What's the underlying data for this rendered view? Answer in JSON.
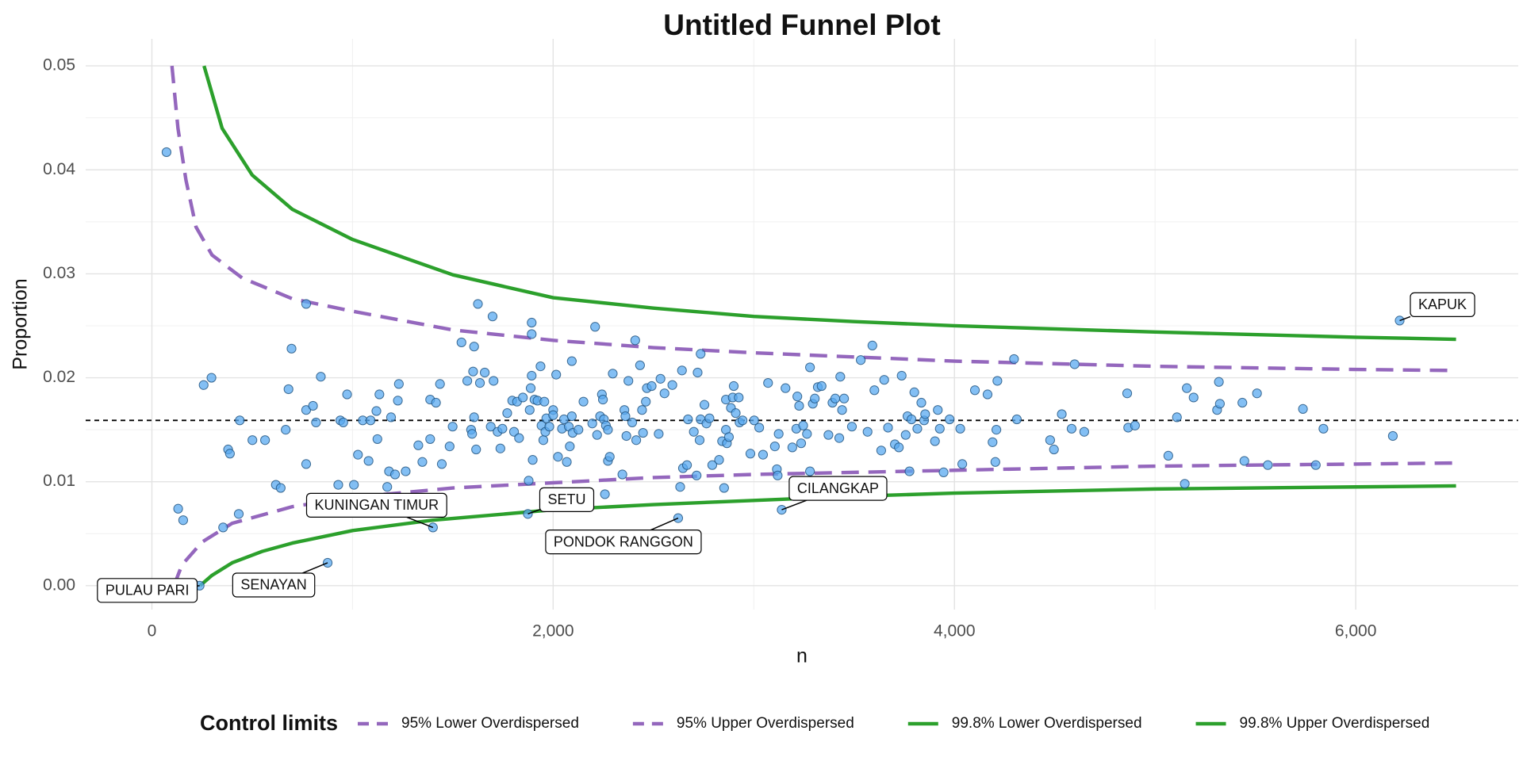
{
  "chart_data": {
    "type": "scatter",
    "title": "Untitled Funnel Plot",
    "x_label": "n",
    "y_label": "Proportion",
    "legend_title": "Control limits",
    "legend": "bottom",
    "grid": true,
    "point_color": "#5aaaf0",
    "reference_line": 0.0159,
    "xlim": [
      -330,
      6810
    ],
    "ylim": [
      -0.0023,
      0.0526
    ],
    "xticks": [
      0,
      {
        "value": 2000,
        "label": "2,000"
      },
      {
        "value": 4000,
        "label": "4,000"
      },
      {
        "value": 6000,
        "label": "6,000"
      }
    ],
    "yticks": [
      {
        "value": 0,
        "label": "0.00"
      },
      0.01,
      0.02,
      0.03,
      0.04,
      0.05
    ],
    "x": [
      73,
      131,
      156,
      258,
      297,
      355,
      380,
      389,
      433,
      438,
      501,
      564,
      618,
      642,
      667,
      681,
      696,
      769,
      769,
      769,
      803,
      818,
      842,
      876,
      929,
      939,
      954,
      973,
      1007,
      1027,
      1051,
      1080,
      1090,
      1119,
      1124,
      1134,
      1173,
      1182,
      1192,
      1212,
      1226,
      1231,
      1265,
      1328,
      1348,
      1387,
      1387,
      1401,
      1416,
      1436,
      1445,
      1484,
      1499,
      1543,
      1572,
      1591,
      1596,
      1601,
      1606,
      1606,
      1616,
      1625,
      1635,
      1659,
      1689,
      1698,
      1703,
      1723,
      1737,
      1747,
      1771,
      1796,
      1805,
      1820,
      1830,
      1849,
      1874,
      1878,
      1883,
      1888,
      1893,
      1893,
      1893,
      1898,
      1907,
      1922,
      1937,
      1942,
      1951,
      1956,
      1961,
      1966,
      1981,
      2000,
      2000,
      2015,
      2024,
      2044,
      2054,
      2068,
      2078,
      2083,
      2093,
      2093,
      2097,
      2126,
      2151,
      2195,
      2209,
      2219,
      2234,
      2243,
      2248,
      2253,
      2258,
      2263,
      2273,
      2273,
      2282,
      2297,
      2345,
      2355,
      2360,
      2365,
      2375,
      2394,
      2409,
      2414,
      2433,
      2443,
      2448,
      2462,
      2467,
      2491,
      2526,
      2535,
      2555,
      2594,
      2623,
      2633,
      2642,
      2647,
      2667,
      2672,
      2701,
      2715,
      2720,
      2730,
      2735,
      2735,
      2754,
      2764,
      2779,
      2793,
      2827,
      2842,
      2852,
      2861,
      2861,
      2866,
      2876,
      2886,
      2895,
      2900,
      2910,
      2925,
      2929,
      2944,
      2983,
      3002,
      3027,
      3046,
      3071,
      3105,
      3115,
      3119,
      3124,
      3139,
      3158,
      3192,
      3212,
      3217,
      3226,
      3236,
      3246,
      3265,
      3280,
      3280,
      3294,
      3304,
      3319,
      3338,
      3372,
      3392,
      3406,
      3426,
      3431,
      3440,
      3450,
      3489,
      3533,
      3567,
      3591,
      3601,
      3635,
      3650,
      3669,
      3703,
      3723,
      3737,
      3757,
      3766,
      3776,
      3786,
      3800,
      3815,
      3835,
      3849,
      3854,
      3903,
      3917,
      3927,
      3946,
      3976,
      4029,
      4039,
      4102,
      4165,
      4190,
      4204,
      4209,
      4214,
      4297,
      4311,
      4477,
      4496,
      4535,
      4584,
      4599,
      4647,
      4861,
      4866,
      4900,
      5066,
      5109,
      5148,
      5158,
      5192,
      5309,
      5318,
      5323,
      5435,
      5445,
      5508,
      5562,
      5737,
      5801,
      5839,
      6185,
      6219,
      238
    ],
    "values": [
      0.0417,
      0.0074,
      0.0063,
      0.0193,
      0.02,
      0.0056,
      0.0131,
      0.0127,
      0.0069,
      0.0159,
      0.014,
      0.014,
      0.0097,
      0.0094,
      0.015,
      0.0189,
      0.0228,
      0.0271,
      0.0117,
      0.0169,
      0.0173,
      0.0157,
      0.0201,
      0.0022,
      0.0097,
      0.0159,
      0.0157,
      0.0184,
      0.0097,
      0.0126,
      0.0159,
      0.012,
      0.0159,
      0.0168,
      0.0141,
      0.0184,
      0.0095,
      0.011,
      0.0162,
      0.0107,
      0.0178,
      0.0194,
      0.011,
      0.0135,
      0.0119,
      0.0141,
      0.0179,
      0.0056,
      0.0176,
      0.0194,
      0.0117,
      0.0134,
      0.0153,
      0.0234,
      0.0197,
      0.015,
      0.0146,
      0.0206,
      0.0162,
      0.023,
      0.0131,
      0.0271,
      0.0195,
      0.0205,
      0.0153,
      0.0259,
      0.0197,
      0.0148,
      0.0132,
      0.0151,
      0.0166,
      0.0178,
      0.0148,
      0.0177,
      0.0142,
      0.0181,
      0.0069,
      0.0101,
      0.0169,
      0.019,
      0.0253,
      0.0242,
      0.0202,
      0.0121,
      0.0179,
      0.0178,
      0.0211,
      0.0154,
      0.014,
      0.0177,
      0.0148,
      0.0161,
      0.0153,
      0.0169,
      0.0164,
      0.0203,
      0.0124,
      0.0151,
      0.016,
      0.0119,
      0.0153,
      0.0134,
      0.0163,
      0.0216,
      0.0147,
      0.015,
      0.0177,
      0.0156,
      0.0249,
      0.0145,
      0.0163,
      0.0184,
      0.0179,
      0.016,
      0.0088,
      0.0154,
      0.015,
      0.012,
      0.0124,
      0.0204,
      0.0107,
      0.0169,
      0.0163,
      0.0144,
      0.0197,
      0.0157,
      0.0236,
      0.014,
      0.0212,
      0.0169,
      0.0147,
      0.0177,
      0.019,
      0.0192,
      0.0146,
      0.0199,
      0.0185,
      0.0193,
      0.0065,
      0.0095,
      0.0207,
      0.0113,
      0.0116,
      0.016,
      0.0148,
      0.0106,
      0.0205,
      0.014,
      0.0223,
      0.016,
      0.0174,
      0.0156,
      0.0161,
      0.0116,
      0.0121,
      0.0139,
      0.0094,
      0.015,
      0.0179,
      0.0137,
      0.0143,
      0.0171,
      0.0181,
      0.0192,
      0.0166,
      0.0181,
      0.0157,
      0.0159,
      0.0127,
      0.0159,
      0.0152,
      0.0126,
      0.0195,
      0.0134,
      0.0112,
      0.0106,
      0.0146,
      0.0073,
      0.019,
      0.0133,
      0.0151,
      0.0182,
      0.0173,
      0.0137,
      0.0154,
      0.0146,
      0.021,
      0.011,
      0.0175,
      0.018,
      0.0191,
      0.0192,
      0.0145,
      0.0176,
      0.018,
      0.0142,
      0.0201,
      0.0169,
      0.018,
      0.0153,
      0.0217,
      0.0148,
      0.0231,
      0.0188,
      0.013,
      0.0198,
      0.0152,
      0.0136,
      0.0133,
      0.0202,
      0.0145,
      0.0163,
      0.011,
      0.016,
      0.0186,
      0.0151,
      0.0176,
      0.0159,
      0.0165,
      0.0139,
      0.0169,
      0.0151,
      0.0109,
      0.016,
      0.0151,
      0.0117,
      0.0188,
      0.0184,
      0.0138,
      0.0119,
      0.015,
      0.0197,
      0.0218,
      0.016,
      0.014,
      0.0131,
      0.0165,
      0.0151,
      0.0213,
      0.0148,
      0.0185,
      0.0152,
      0.0154,
      0.0125,
      0.0162,
      0.0098,
      0.019,
      0.0181,
      0.0169,
      0.0196,
      0.0175,
      0.0176,
      0.012,
      0.0185,
      0.0116,
      0.017,
      0.0116,
      0.0151,
      0.0144,
      0.0255,
      0.0
    ],
    "series": [
      {
        "name": "95% Lower Overdispersed",
        "color": "#9467bd",
        "dashed": true,
        "x": [
          110,
          150,
          250,
          400,
          700,
          1000,
          1500,
          2000,
          2500,
          3000,
          4000,
          5000,
          6000,
          6500
        ],
        "values": [
          0.0,
          0.002,
          0.0042,
          0.006,
          0.0076,
          0.0085,
          0.0094,
          0.0099,
          0.0104,
          0.0107,
          0.0111,
          0.0115,
          0.0117,
          0.0118
        ]
      },
      {
        "name": "95% Upper Overdispersed",
        "color": "#9467bd",
        "dashed": true,
        "x": [
          100,
          130,
          170,
          220,
          300,
          450,
          700,
          1000,
          1500,
          2000,
          2500,
          3000,
          4000,
          5000,
          6000,
          6500
        ],
        "values": [
          0.05,
          0.044,
          0.039,
          0.0345,
          0.0318,
          0.0296,
          0.0276,
          0.0264,
          0.0246,
          0.0236,
          0.0229,
          0.0224,
          0.0216,
          0.0211,
          0.0208,
          0.0207
        ]
      },
      {
        "name": "99.8% Lower Overdispersed",
        "color": "#2ca02c",
        "dashed": false,
        "x": [
          240,
          300,
          400,
          550,
          700,
          1000,
          1400,
          2000,
          2500,
          3000,
          3500,
          4000,
          5000,
          6000,
          6500
        ],
        "values": [
          0.0,
          0.001,
          0.0022,
          0.0033,
          0.0041,
          0.0053,
          0.0063,
          0.0073,
          0.0078,
          0.0082,
          0.0086,
          0.0089,
          0.0093,
          0.0095,
          0.0096
        ]
      },
      {
        "name": "99.8% Upper Overdispersed",
        "color": "#2ca02c",
        "dashed": false,
        "x": [
          260,
          350,
          500,
          700,
          1000,
          1500,
          2000,
          2500,
          3000,
          3500,
          4000,
          5000,
          6000,
          6500
        ],
        "values": [
          0.05,
          0.044,
          0.0395,
          0.0362,
          0.0333,
          0.0299,
          0.0277,
          0.0267,
          0.0259,
          0.0254,
          0.025,
          0.0244,
          0.0239,
          0.0237
        ]
      }
    ],
    "annotations": [
      {
        "text": "PULAU PARI",
        "x": 238,
        "y": 0.0
      },
      {
        "text": "SENAYAN",
        "x": 876,
        "y": 0.0022
      },
      {
        "text": "KUNINGAN TIMUR",
        "x": 1401,
        "y": 0.0056
      },
      {
        "text": "SETU",
        "x": 1874,
        "y": 0.0069
      },
      {
        "text": "PONDOK RANGGON",
        "x": 2623,
        "y": 0.0065
      },
      {
        "text": "CILANGKAP",
        "x": 3139,
        "y": 0.0073
      },
      {
        "text": "KAPUK",
        "x": 6219,
        "y": 0.0255
      }
    ]
  }
}
